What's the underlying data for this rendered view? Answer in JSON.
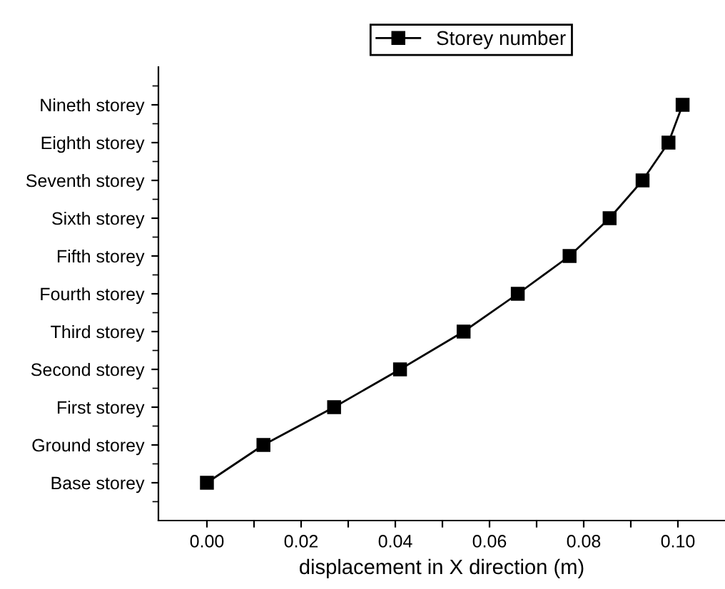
{
  "chart_data": {
    "type": "line",
    "orientation": "horizontal",
    "xlabel": "displacement in X direction (m)",
    "categories": [
      "Nineth storey",
      "Eighth storey",
      "Seventh storey",
      "Sixth storey",
      "Fifth storey",
      "Fourth storey",
      "Third storey",
      "Second storey",
      "First storey",
      "Ground storey",
      "Base storey"
    ],
    "series": [
      {
        "name": "Storey number",
        "color": "#000000",
        "values": [
          0.101,
          0.098,
          0.0925,
          0.0855,
          0.077,
          0.066,
          0.0545,
          0.041,
          0.027,
          0.012,
          0.0
        ]
      }
    ],
    "xlim": [
      -0.0103,
      0.11
    ],
    "xticks": [
      {
        "value": 0.0,
        "label": "0.00"
      },
      {
        "value": 0.01,
        "label": null
      },
      {
        "value": 0.02,
        "label": "0.02"
      },
      {
        "value": 0.03,
        "label": null
      },
      {
        "value": 0.04,
        "label": "0.04"
      },
      {
        "value": 0.05,
        "label": null
      },
      {
        "value": 0.06,
        "label": "0.06"
      },
      {
        "value": 0.07,
        "label": null
      },
      {
        "value": 0.08,
        "label": "0.08"
      },
      {
        "value": 0.09,
        "label": null
      },
      {
        "value": 0.1,
        "label": "0.10"
      }
    ],
    "marker": "square",
    "line_style": "solid",
    "legend": "top",
    "grid": false
  }
}
